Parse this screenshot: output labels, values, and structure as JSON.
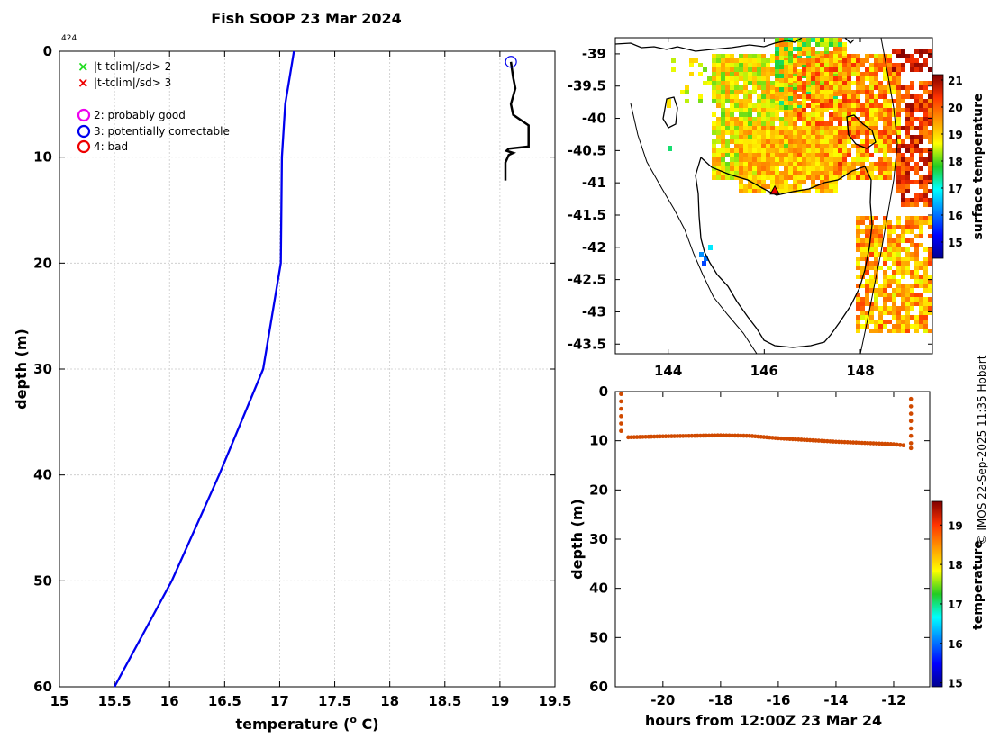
{
  "figure": {
    "title": "Fish SOOP 23 Mar 2024",
    "profile_id": "424",
    "watermark": "© IMOS 22-Sep-2025 11:35 Hobart"
  },
  "legend": {
    "items": [
      {
        "symbol": "×",
        "color": "#22dd22",
        "label": "|t-tclim|/sd> 2"
      },
      {
        "symbol": "×",
        "color": "#ee0000",
        "label": "|t-tclim|/sd> 3"
      },
      {
        "symbol": "○",
        "color": "#ee00ee",
        "label": "2: probably good"
      },
      {
        "symbol": "○",
        "color": "#0000ee",
        "label": "3: potentially correctable"
      },
      {
        "symbol": "○",
        "color": "#ee0000",
        "label": "4: bad"
      }
    ]
  },
  "chart_data": [
    {
      "type": "line",
      "name": "profile",
      "xlabel": "temperature (° C)",
      "xlabel_main": "temperature (",
      "xlabel_sup": "o",
      "xlabel_end": " C)",
      "ylabel": "depth (m)",
      "xlim": [
        15,
        19.5
      ],
      "ylim": [
        60,
        0
      ],
      "xticks": [
        "15",
        "15.5",
        "16",
        "16.5",
        "17",
        "17.5",
        "18",
        "18.5",
        "19",
        "19.5"
      ],
      "yticks": [
        "0",
        "10",
        "20",
        "30",
        "40",
        "50",
        "60"
      ],
      "series": [
        {
          "name": "profile",
          "color": "#0000ee",
          "x": [
            17.13,
            17.05,
            17.02,
            17.01,
            16.85,
            16.45,
            16.02,
            15.5
          ],
          "y": [
            0,
            5,
            10,
            20,
            30,
            40,
            50,
            60
          ]
        },
        {
          "name": "track",
          "color": "#000000",
          "x": [
            19.1,
            19.12,
            19.14,
            19.1,
            19.12,
            19.26,
            19.26,
            19.08,
            19.06,
            19.12,
            19.08,
            19.05,
            19.05
          ],
          "y": [
            1,
            2.5,
            3.5,
            5,
            6,
            7,
            9,
            9.2,
            9.4,
            9.6,
            9.8,
            10.5,
            12.2
          ]
        }
      ],
      "flag_marker": {
        "x": 19.1,
        "y": 1,
        "color": "#0000ee"
      }
    },
    {
      "type": "heatmap",
      "name": "surface temperature map",
      "xticks": [
        "144",
        "146",
        "148"
      ],
      "yticks": [
        "-39",
        "-39.5",
        "-40",
        "-40.5",
        "-41",
        "-41.5",
        "-42",
        "-42.5",
        "-43",
        "-43.5"
      ],
      "xlim": [
        142.9,
        149.5
      ],
      "ylim": [
        -43.65,
        -38.75
      ],
      "colorbar_label": "surface temperature",
      "colorbar_ticks": [
        "15",
        "16",
        "17",
        "18",
        "19",
        "20",
        "21"
      ],
      "colorbar_range": [
        14.4,
        21.2
      ],
      "marker": {
        "lon": 146.22,
        "lat": -41.12
      }
    },
    {
      "type": "scatter",
      "name": "depth timeseries",
      "xlabel": "hours from 12:00Z 23 Mar 24",
      "ylabel": "depth (m)",
      "xlim": [
        -21.65,
        -10.75
      ],
      "ylim": [
        60,
        0
      ],
      "xticks": [
        "-20",
        "-18",
        "-16",
        "-14",
        "-12"
      ],
      "yticks": [
        "0",
        "10",
        "20",
        "30",
        "40",
        "50",
        "60"
      ],
      "colorbar_label": "temperature",
      "colorbar_ticks": [
        "15",
        "16",
        "17",
        "18",
        "19"
      ],
      "colorbar_range": [
        14.9,
        19.6
      ],
      "dive_start": {
        "x": -21.45,
        "y": [
          0.5,
          2,
          3.5,
          5,
          6.5,
          8
        ]
      },
      "dive_end": {
        "x": -11.4,
        "y": [
          1.5,
          3,
          4.5,
          6,
          7.5,
          9,
          10.5,
          11.5
        ]
      },
      "bottom": {
        "x": [
          -21.2,
          -20,
          -18,
          -17,
          -16,
          -14,
          -12,
          -11.55
        ],
        "y": [
          9.3,
          9.1,
          8.9,
          9.0,
          9.5,
          10.2,
          10.7,
          11.0
        ]
      },
      "point_color": "#d04a00"
    }
  ]
}
